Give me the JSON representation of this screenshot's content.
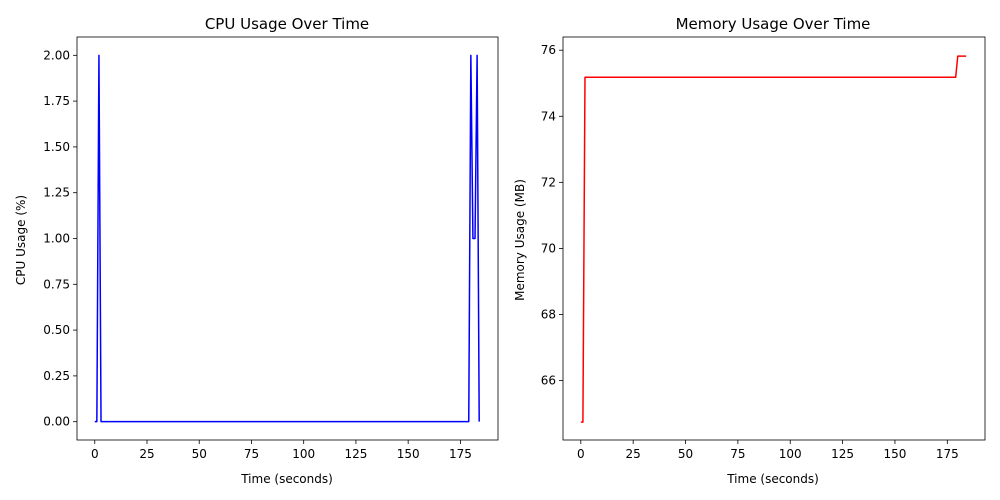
{
  "chart_data": [
    {
      "type": "line",
      "title": "CPU Usage Over Time",
      "xlabel": "Time (seconds)",
      "ylabel": "CPU Usage (%)",
      "xlim": [
        -8.5,
        193
      ],
      "ylim": [
        -0.1,
        2.1
      ],
      "xticks": [
        0,
        25,
        50,
        75,
        100,
        125,
        150,
        175
      ],
      "xtick_labels": [
        "0",
        "25",
        "50",
        "75",
        "100",
        "125",
        "150",
        "175"
      ],
      "yticks": [
        0.0,
        0.25,
        0.5,
        0.75,
        1.0,
        1.25,
        1.5,
        1.75,
        2.0
      ],
      "ytick_labels": [
        "0.00",
        "0.25",
        "0.50",
        "0.75",
        "1.00",
        "1.25",
        "1.50",
        "1.75",
        "2.00"
      ],
      "grid": false,
      "series": [
        {
          "color": "#0000ff",
          "x": [
            0,
            1,
            2,
            3,
            4,
            178,
            179,
            180,
            181,
            182,
            183,
            184
          ],
          "y": [
            0,
            0,
            2,
            0,
            0,
            0,
            0,
            2,
            1,
            1,
            2,
            0
          ]
        }
      ]
    },
    {
      "type": "line",
      "title": "Memory Usage Over Time",
      "xlabel": "Time (seconds)",
      "ylabel": "Memory Usage (MB)",
      "xlim": [
        -8.5,
        193
      ],
      "ylim": [
        64.2,
        76.4
      ],
      "xticks": [
        0,
        25,
        50,
        75,
        100,
        125,
        150,
        175
      ],
      "xtick_labels": [
        "0",
        "25",
        "50",
        "75",
        "100",
        "125",
        "150",
        "175"
      ],
      "yticks": [
        66,
        68,
        70,
        72,
        74,
        76
      ],
      "ytick_labels": [
        "66",
        "68",
        "70",
        "72",
        "74",
        "76"
      ],
      "grid": false,
      "series": [
        {
          "color": "#ff0000",
          "x": [
            0,
            1,
            2,
            3,
            178,
            179,
            180,
            181,
            182,
            183,
            184
          ],
          "y": [
            64.74,
            64.74,
            75.18,
            75.18,
            75.18,
            75.18,
            75.82,
            75.82,
            75.82,
            75.82,
            75.82
          ]
        }
      ]
    }
  ]
}
